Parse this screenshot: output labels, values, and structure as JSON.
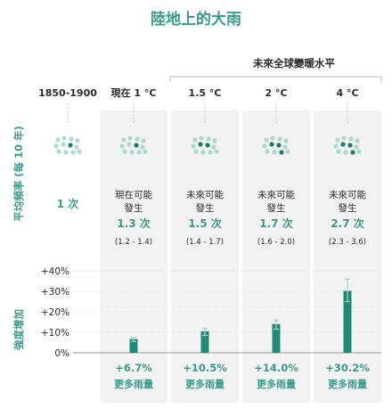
{
  "title": "陸地上的大雨",
  "future_header": "未來全球變暖水平",
  "row_labels": {
    "frequency": "平均頻率 (每 10 年)",
    "intensity": "強度增加"
  },
  "columns": [
    {
      "header": "1850-1900",
      "freq_lines": [],
      "freq_value": "1 次",
      "range": "",
      "intensity_label": "",
      "intensity_sub": ""
    },
    {
      "header": "現在  1 °C",
      "freq_lines": [
        "現在可能",
        "發生"
      ],
      "freq_value": "1.3 次",
      "range": "(1.2 - 1.4)",
      "intensity_label": "+6.7%",
      "intensity_sub": "更多雨量"
    },
    {
      "header": "1.5 °C",
      "freq_lines": [
        "未來可能",
        "發生"
      ],
      "freq_value": "1.5 次",
      "range": "(1.4 - 1.7)",
      "intensity_label": "+10.5%",
      "intensity_sub": "更多雨量"
    },
    {
      "header": "2 °C",
      "freq_lines": [
        "未來可能",
        "發生"
      ],
      "freq_value": "1.7 次",
      "range": "(1.6 - 2.0)",
      "intensity_label": "+14.0%",
      "intensity_sub": "更多雨量"
    },
    {
      "header": "4 °C",
      "freq_lines": [
        "未來可能",
        "發生"
      ],
      "freq_value": "2.7 次",
      "range": "(2.3 - 3.6)",
      "intensity_label": "+30.2%",
      "intensity_sub": "更多雨量"
    }
  ],
  "colors": {
    "teal": "#3a9b8c",
    "bar": "#1f8a78",
    "dot_light": "#a9d9cf",
    "dot_dark": "#1f7a6d",
    "panel": "#f2f2f2",
    "text": "#2b2b2b",
    "whisker": "#9fd4c9"
  },
  "chart_data": {
    "type": "bar",
    "title": "陸地上的大雨",
    "categories": [
      "1850-1900",
      "現在 1 °C",
      "1.5 °C",
      "2 °C",
      "4 °C"
    ],
    "series": [
      {
        "name": "強度增加",
        "values": [
          null,
          6.7,
          10.5,
          14.0,
          30.2
        ],
        "error_low": [
          null,
          5.5,
          8.5,
          11.5,
          25
        ],
        "error_high": [
          null,
          7.5,
          12,
          16,
          36
        ]
      }
    ],
    "frequency_per_10_years": [
      1,
      1.3,
      1.5,
      1.7,
      2.7
    ],
    "frequency_ranges": [
      null,
      [
        1.2,
        1.4
      ],
      [
        1.4,
        1.7
      ],
      [
        1.6,
        2.0
      ],
      [
        2.3,
        3.6
      ]
    ],
    "ylabel": "強度增加",
    "yticks": [
      "0%",
      "+10%",
      "+20%",
      "+30%",
      "+40%"
    ],
    "ylim": [
      0,
      40
    ],
    "unit": "%"
  }
}
